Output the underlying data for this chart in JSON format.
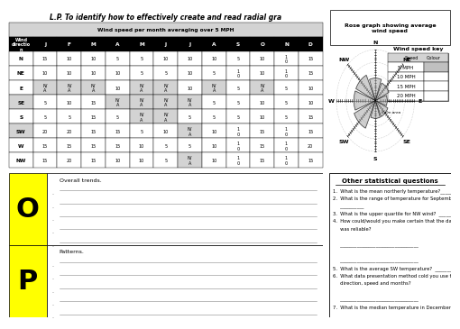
{
  "title": "L.P. To identify how to effectively create and read radial gra",
  "table_title": "Wind speed per month averaging over 5 MPH",
  "directions": [
    "N",
    "NE",
    "E",
    "SE",
    "S",
    "SW",
    "W",
    "NW"
  ],
  "months": [
    "J",
    "F",
    "M",
    "A",
    "M",
    "J",
    "J",
    "A",
    "S",
    "O",
    "N",
    "D"
  ],
  "table_data": [
    [
      15,
      10,
      10,
      5,
      5,
      10,
      10,
      10,
      5,
      10,
      1,
      15
    ],
    [
      10,
      10,
      10,
      10,
      5,
      5,
      10,
      5,
      1,
      10,
      1,
      15
    ],
    [
      "N/A",
      "N/A",
      "N/A",
      10,
      "N/A",
      "N/A",
      10,
      "N/A",
      5,
      "N/A",
      5,
      10
    ],
    [
      5,
      10,
      15,
      "N/A",
      "N/A",
      "N/A",
      "N/A",
      5,
      5,
      10,
      5,
      10
    ],
    [
      5,
      5,
      15,
      5,
      "N/A",
      "N/A",
      5,
      5,
      5,
      10,
      5,
      15
    ],
    [
      20,
      20,
      15,
      15,
      5,
      10,
      "N/A",
      10,
      1,
      15,
      1,
      15
    ],
    [
      15,
      15,
      15,
      15,
      10,
      5,
      5,
      10,
      1,
      15,
      1,
      20
    ],
    [
      15,
      20,
      15,
      10,
      10,
      5,
      "N/A",
      10,
      1,
      15,
      1,
      15
    ]
  ],
  "rose_title": "Rose graph showing average\nwind speed",
  "wind_key_title": "Wind speed key",
  "wind_speeds": [
    "5 MPH",
    "10 MPH",
    "15 MPH",
    "20 MPH"
  ],
  "wind_speed_colors": [
    "#c0c0c0",
    "#ffffff",
    "#ffffff",
    "#ffffff"
  ],
  "O_label": "O",
  "O_text": "Overall trends.",
  "P_label": "P",
  "P_text": "Patterns.",
  "questions_title": "Other statistical questions",
  "q_texts": [
    "1.  What is the mean northerly temperature?_________",
    "2.  What is the range of temperature for September?",
    "     __________",
    "3.  What is the upper quartile for NW wind?  _________",
    "4.  How could/would you make certain that the data collection",
    "     was reliable?",
    "",
    "     _________________________________",
    "",
    "     _________________________________",
    "5.  What is the average SW temperature?  _________",
    "6.  What data presentation method cold you use to show wind",
    "     direction, speed and months?",
    "",
    "     _________________________________",
    "7.  What is the median temperature in December?  _______"
  ],
  "bg_color": "#ffffff",
  "yellow_color": "#ffff00",
  "header_bg": "#000000",
  "header_fg": "#ffffff",
  "gray_bg": "#d3d3d3"
}
